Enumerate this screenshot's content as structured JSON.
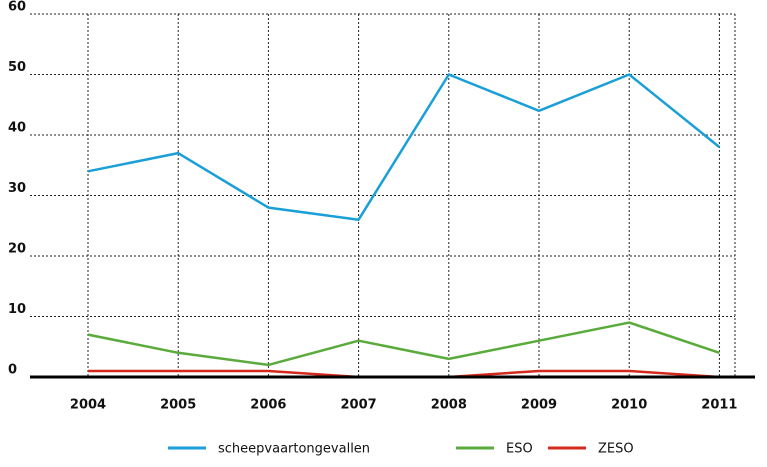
{
  "chart_data": {
    "type": "line",
    "categories": [
      "2004",
      "2005",
      "2006",
      "2007",
      "2008",
      "2009",
      "2010",
      "2011"
    ],
    "series": [
      {
        "name": "scheepvaartongevallen",
        "color": "#1a9fd8",
        "values": [
          34,
          37,
          28,
          26,
          50,
          44,
          50,
          38
        ]
      },
      {
        "name": "ESO",
        "color": "#5aaa3c",
        "values": [
          7,
          4,
          2,
          6,
          3,
          6,
          9,
          4
        ]
      },
      {
        "name": "ZESO",
        "color": "#d42a1e",
        "values": [
          1,
          1,
          1,
          0,
          0,
          1,
          1,
          0
        ]
      }
    ],
    "ylim": [
      0,
      60
    ],
    "yticks": [
      0,
      10,
      20,
      30,
      40,
      50,
      60
    ],
    "grid": true
  }
}
